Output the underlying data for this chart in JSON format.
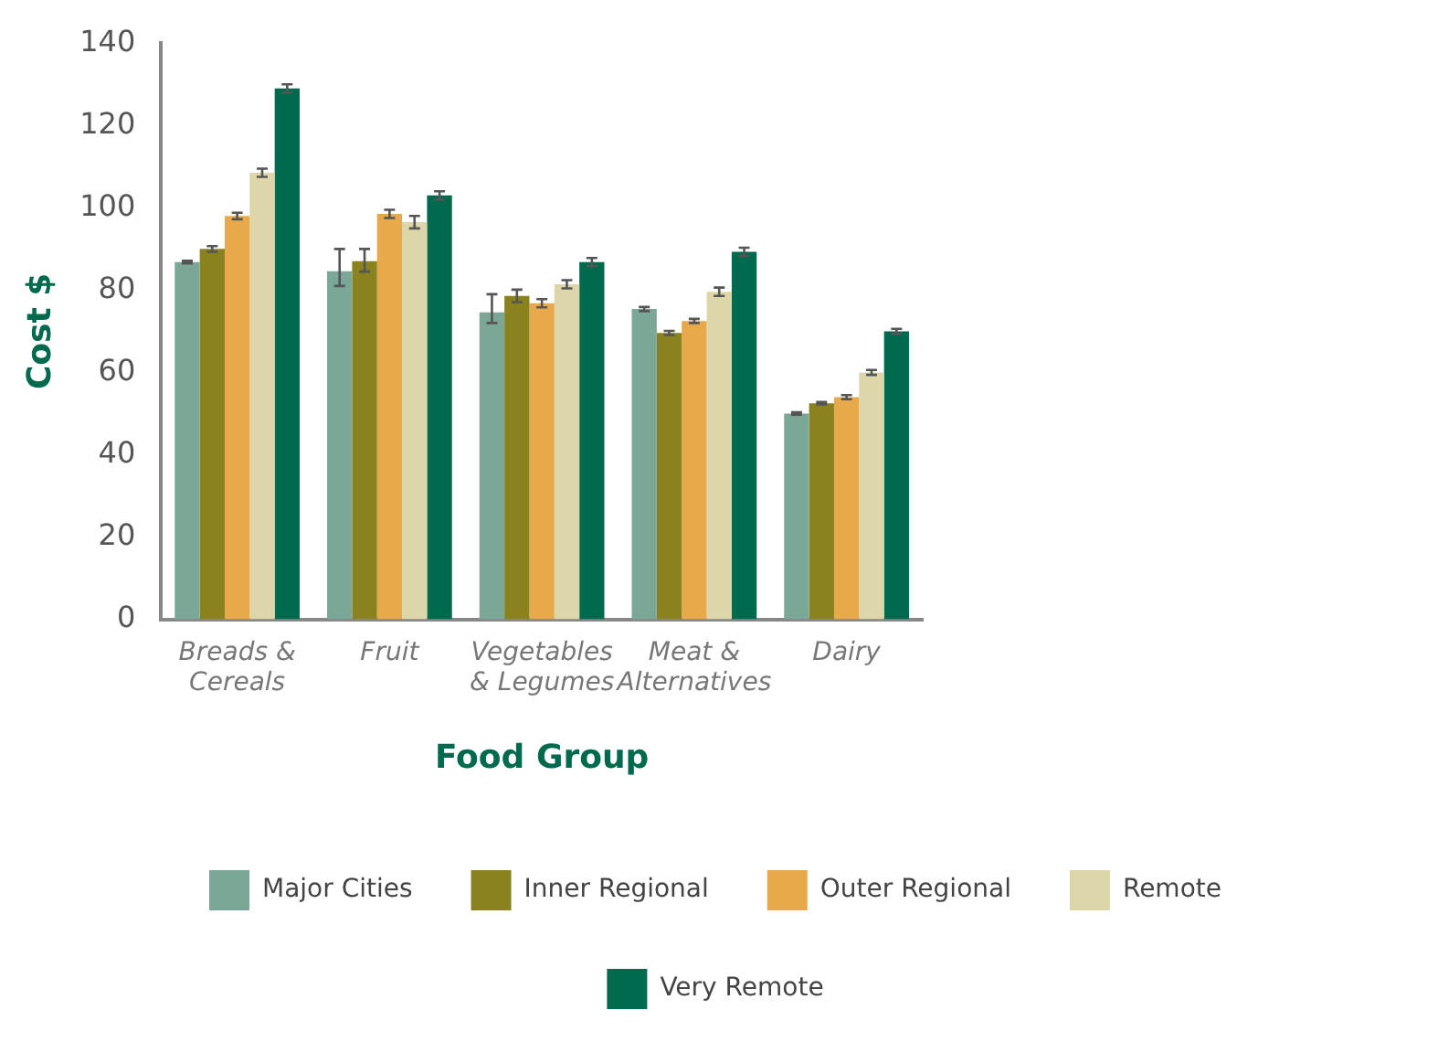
{
  "chart_data": {
    "type": "bar",
    "xlabel": "Food Group",
    "ylabel": "Cost $",
    "categories": [
      "Breads & Cereals",
      "Fruit",
      "Vegetables & Legumes",
      "Meat & Alternatives",
      "Dairy"
    ],
    "series": [
      {
        "name": "Major Cities",
        "color": "#7ba797",
        "values": [
          86.8,
          84.6,
          74.6,
          75.4,
          50
        ],
        "errors": [
          0.3,
          [
            81,
            90
          ],
          [
            72,
            79
          ],
          0.5,
          0.3
        ]
      },
      {
        "name": "Inner Regional",
        "color": "#8a821e",
        "values": [
          90,
          87,
          78.6,
          69.6,
          52.5
        ],
        "errors": [
          0.7,
          [
            84.5,
            90
          ],
          1.5,
          0.5,
          0.3
        ]
      },
      {
        "name": "Outer Regional",
        "color": "#e8a94b",
        "values": [
          98,
          98.5,
          76.8,
          72.5,
          54
        ],
        "errors": [
          0.8,
          1,
          1,
          0.5,
          0.5
        ]
      },
      {
        "name": "Remote",
        "color": "#ddd6a8",
        "values": [
          108.5,
          96.5,
          81.4,
          79.6,
          60
        ],
        "errors": [
          1,
          1.5,
          1,
          1,
          0.6
        ]
      },
      {
        "name": "Very Remote",
        "color": "#006a4e",
        "values": [
          129,
          103,
          86.8,
          89.3,
          70
        ],
        "errors": [
          1,
          1,
          1,
          1,
          0.6
        ]
      }
    ],
    "ylim": [
      0,
      140
    ],
    "yticks": [
      0,
      20,
      40,
      60,
      80,
      100,
      120,
      140
    ],
    "grid": false,
    "legend": "bottom"
  }
}
